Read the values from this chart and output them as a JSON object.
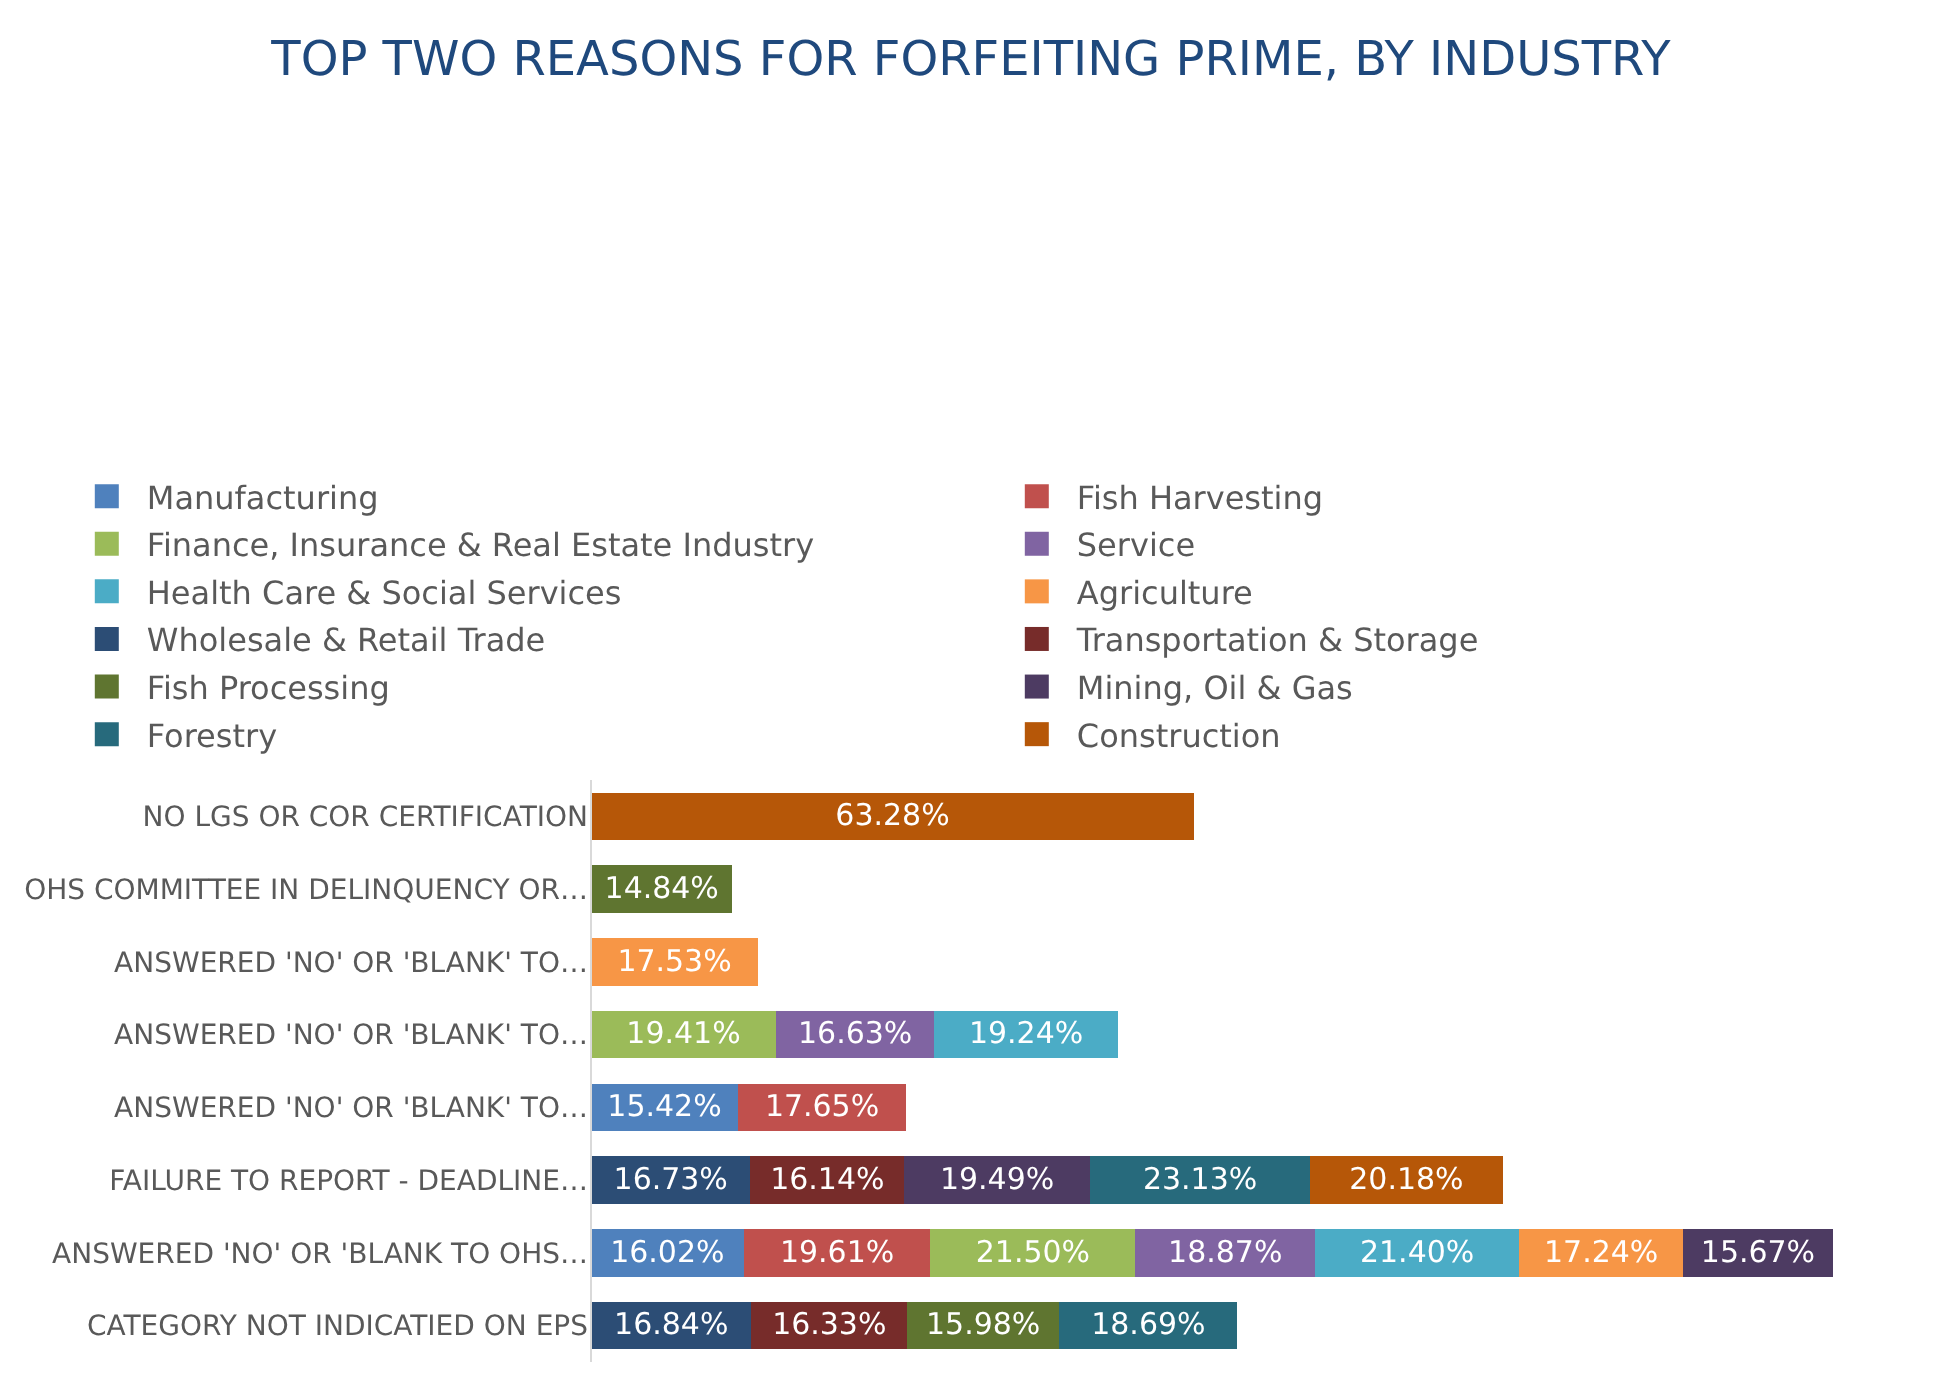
{
  "chart_data": {
    "type": "bar",
    "orientation": "horizontal",
    "stacked": true,
    "title": "TOP TWO REASONS FOR FORFEITING PRIME, BY INDUSTRY",
    "categories": [
      "NO LGS OR COR CERTIFICATION",
      "OHS COMMITTEE IN DELINQUENCY OR…",
      "ANSWERED 'NO' OR 'BLANK' TO…",
      "ANSWERED 'NO' OR 'BLANK' TO…",
      "ANSWERED 'NO' OR 'BLANK' TO…",
      "FAILURE TO REPORT - DEADLINE…",
      "ANSWERED 'NO' OR 'BLANK TO OHS…",
      "CATEGORY NOT INDICATIED ON EPS"
    ],
    "legend": "top",
    "series": [
      {
        "name": "Manufacturing",
        "color": "#4f81bd",
        "values": [
          null,
          null,
          null,
          null,
          15.42,
          null,
          16.02,
          null
        ],
        "value_labels": [
          null,
          null,
          null,
          null,
          "15.42%",
          null,
          "16.02%",
          null
        ]
      },
      {
        "name": "Fish Harvesting",
        "color": "#c0504d",
        "values": [
          null,
          null,
          null,
          null,
          17.65,
          null,
          19.61,
          null
        ],
        "value_labels": [
          null,
          null,
          null,
          null,
          "17.65%",
          null,
          "19.61%",
          null
        ]
      },
      {
        "name": "Finance, Insurance & Real Estate Industry",
        "color": "#9bbb59",
        "values": [
          null,
          null,
          null,
          19.41,
          null,
          null,
          21.5,
          null
        ],
        "value_labels": [
          null,
          null,
          null,
          "19.41%",
          null,
          null,
          "21.50%",
          null
        ]
      },
      {
        "name": "Service",
        "color": "#8064a2",
        "values": [
          null,
          null,
          null,
          16.63,
          null,
          null,
          18.87,
          null
        ],
        "value_labels": [
          null,
          null,
          null,
          "16.63%",
          null,
          null,
          "18.87%",
          null
        ]
      },
      {
        "name": "Health Care & Social Services",
        "color": "#4bacc6",
        "values": [
          null,
          null,
          null,
          19.24,
          null,
          null,
          21.4,
          null
        ],
        "value_labels": [
          null,
          null,
          null,
          "19.24%",
          null,
          null,
          "21.40%",
          null
        ]
      },
      {
        "name": "Agriculture",
        "color": "#f79646",
        "values": [
          null,
          null,
          17.53,
          null,
          null,
          null,
          17.24,
          null
        ],
        "value_labels": [
          null,
          null,
          "17.53%",
          null,
          null,
          null,
          "17.24%",
          null
        ]
      },
      {
        "name": "Wholesale & Retail Trade",
        "color": "#2c4d75",
        "values": [
          null,
          null,
          null,
          null,
          null,
          16.73,
          null,
          16.84
        ],
        "value_labels": [
          null,
          null,
          null,
          null,
          null,
          "16.73%",
          null,
          "16.84%"
        ]
      },
      {
        "name": "Transportation & Storage",
        "color": "#772c2a",
        "values": [
          null,
          null,
          null,
          null,
          null,
          16.14,
          null,
          16.33
        ],
        "value_labels": [
          null,
          null,
          null,
          null,
          null,
          "16.14%",
          null,
          "16.33%"
        ]
      },
      {
        "name": "Fish Processing",
        "color": "#5f7530",
        "values": [
          null,
          14.84,
          null,
          null,
          null,
          null,
          null,
          15.98
        ],
        "value_labels": [
          null,
          "14.84%",
          null,
          null,
          null,
          null,
          null,
          "15.98%"
        ]
      },
      {
        "name": "Mining, Oil & Gas",
        "color": "#4d3b62",
        "values": [
          null,
          null,
          null,
          null,
          null,
          19.49,
          15.67,
          null
        ],
        "value_labels": [
          null,
          null,
          null,
          null,
          null,
          "19.49%",
          "15.67%",
          null
        ]
      },
      {
        "name": "Forestry",
        "color": "#276a7c",
        "values": [
          null,
          null,
          null,
          null,
          null,
          23.13,
          null,
          18.69
        ],
        "value_labels": [
          null,
          null,
          null,
          null,
          null,
          "23.13%",
          null,
          "18.69%"
        ]
      },
      {
        "name": "Construction",
        "color": "#b65708",
        "values": [
          63.28,
          null,
          null,
          null,
          null,
          20.18,
          null,
          null
        ],
        "value_labels": [
          "63.28%",
          null,
          null,
          null,
          null,
          "20.18%",
          null,
          null
        ]
      }
    ]
  }
}
